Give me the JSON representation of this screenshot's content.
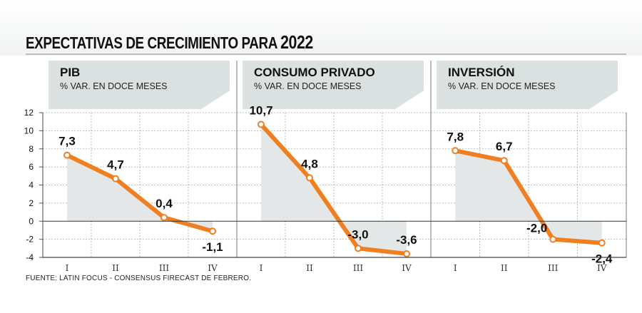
{
  "title": "EXPECTATIVAS DE CRECIMIENTO PARA",
  "title_year": "2022",
  "source": "FUENTE:  LATIN FOCUS - CONSENSUS FIRECAST DE FEBRERO.",
  "colors": {
    "line": "#f07f21",
    "area": "#e3e7e7",
    "header": "#dbe0e0",
    "grid": "#aaaaaa",
    "marker_fill": "#ffffff"
  },
  "chart_data": [
    {
      "type": "line",
      "title": "PIB",
      "subtitle": "% VAR. EN DOCE MESES",
      "categories": [
        "I",
        "II",
        "III",
        "IV"
      ],
      "values": [
        7.3,
        4.7,
        0.4,
        -1.1
      ],
      "labels": [
        "7,3",
        "4,7",
        "0,4",
        "-1,1"
      ],
      "yticks": [
        "12",
        "10",
        "8",
        "6",
        "4",
        "2",
        "0",
        "-2",
        "-4"
      ],
      "ylim": [
        -4,
        12
      ],
      "grid": true
    },
    {
      "type": "line",
      "title": "CONSUMO PRIVADO",
      "subtitle": "% VAR. EN DOCE MESES",
      "categories": [
        "I",
        "II",
        "III",
        "IV"
      ],
      "values": [
        10.7,
        4.8,
        -3.0,
        -3.6
      ],
      "labels": [
        "10,7",
        "4,8",
        "-3,0",
        "-3,6"
      ],
      "ylim": [
        -4,
        12
      ],
      "grid": true
    },
    {
      "type": "line",
      "title": "INVERSIÓN",
      "subtitle": "% VAR. EN DOCE MESES",
      "categories": [
        "I",
        "II",
        "III",
        "IV"
      ],
      "values": [
        7.8,
        6.7,
        -2.0,
        -2.4
      ],
      "labels": [
        "7,8",
        "6,7",
        "-2,0",
        "-2,4"
      ],
      "ylim": [
        -4,
        12
      ],
      "grid": true
    }
  ]
}
